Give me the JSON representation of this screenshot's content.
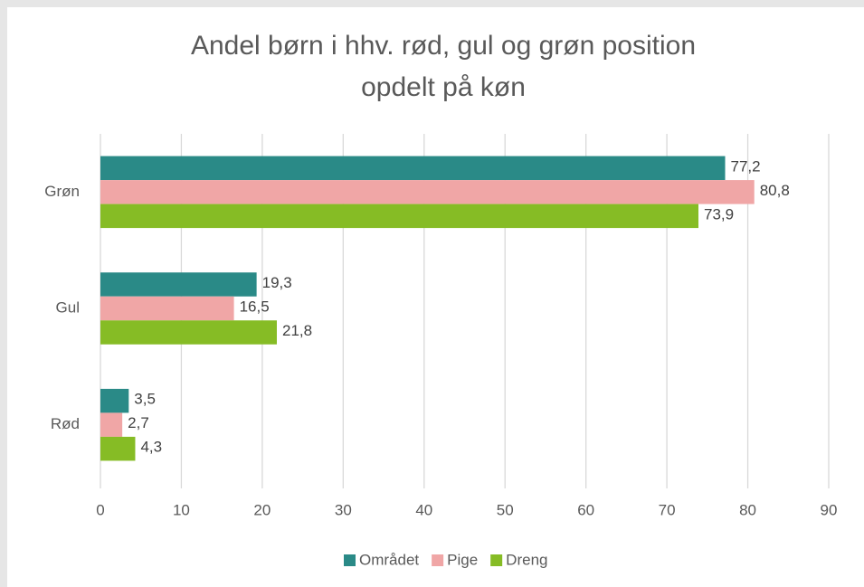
{
  "chart_data": {
    "type": "bar",
    "orientation": "horizontal",
    "title": [
      "Andel børn i hhv. rød, gul og grøn position",
      "opdelt på køn"
    ],
    "categories": [
      "Grøn",
      "Gul",
      "Rød"
    ],
    "series": [
      {
        "name": "Området",
        "color": "#2a8a87",
        "values": [
          77.2,
          19.3,
          3.5
        ],
        "value_labels": [
          "77,2",
          "19,3",
          "3,5"
        ]
      },
      {
        "name": "Pige",
        "color": "#f0a6a6",
        "values": [
          80.8,
          16.5,
          2.7
        ],
        "value_labels": [
          "80,8",
          "16,5",
          "2,7"
        ]
      },
      {
        "name": "Dreng",
        "color": "#86bc25",
        "values": [
          73.9,
          21.8,
          4.3
        ],
        "value_labels": [
          "73,9",
          "21,8",
          "4,3"
        ]
      }
    ],
    "xlim": [
      0,
      90
    ],
    "xticks": [
      0,
      10,
      20,
      30,
      40,
      50,
      60,
      70,
      80,
      90
    ],
    "grid": true,
    "legend": "bottom"
  }
}
